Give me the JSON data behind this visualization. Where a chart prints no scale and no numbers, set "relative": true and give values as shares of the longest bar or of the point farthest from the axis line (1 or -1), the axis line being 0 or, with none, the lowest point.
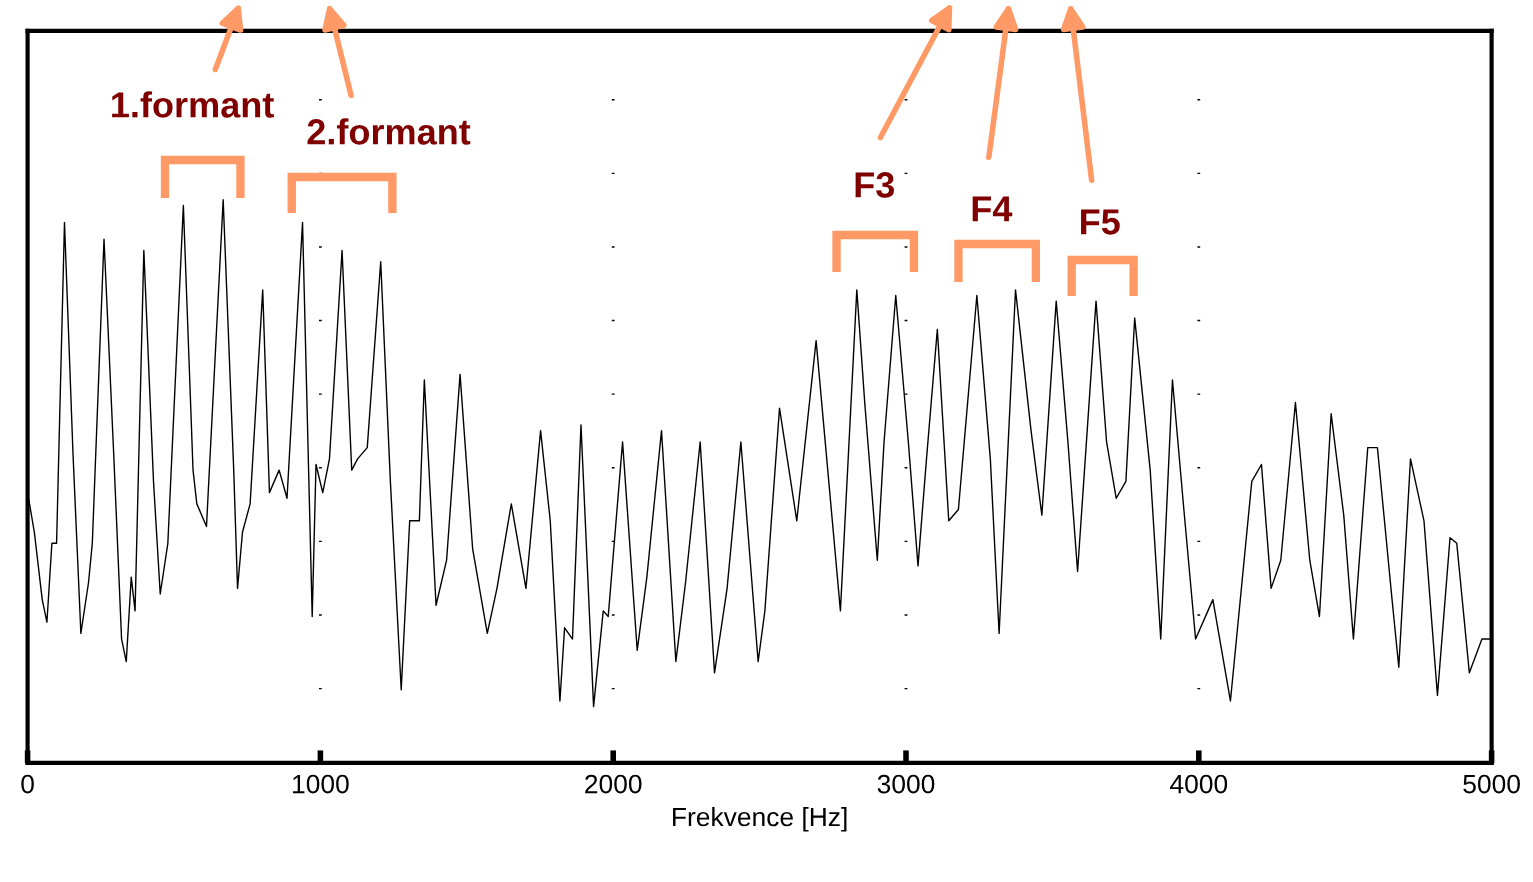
{
  "chart_data": {
    "type": "line",
    "relative": true,
    "xlabel": "Frekvence [Hz]",
    "xlim": [
      0,
      5000
    ],
    "xticks": [
      0,
      1000,
      2000,
      3000,
      4000,
      5000
    ],
    "tick_labels": "x",
    "grid": "x",
    "x": [
      0,
      23,
      50,
      66,
      83,
      99,
      126,
      155,
      182,
      208,
      221,
      261,
      294,
      321,
      337,
      354,
      367,
      397,
      430,
      453,
      479,
      532,
      565,
      578,
      611,
      668,
      704,
      717,
      734,
      760,
      803,
      826,
      859,
      886,
      939,
      972,
      985,
      1008,
      1031,
      1074,
      1107,
      1127,
      1160,
      1206,
      1239,
      1276,
      1305,
      1338,
      1355,
      1395,
      1431,
      1477,
      1520,
      1570,
      1603,
      1652,
      1702,
      1752,
      1785,
      1818,
      1834,
      1861,
      1890,
      1933,
      1966,
      1983,
      2032,
      2082,
      2115,
      2165,
      2214,
      2247,
      2297,
      2346,
      2389,
      2436,
      2495,
      2518,
      2568,
      2627,
      2693,
      2776,
      2832,
      2859,
      2902,
      2925,
      2965,
      3008,
      3041,
      3070,
      3107,
      3146,
      3179,
      3242,
      3288,
      3318,
      3374,
      3427,
      3464,
      3513,
      3553,
      3586,
      3649,
      3685,
      3718,
      3751,
      3781,
      3834,
      3870,
      3910,
      3949,
      3989,
      4048,
      4108,
      4181,
      4214,
      4247,
      4280,
      4330,
      4379,
      4412,
      4452,
      4495,
      4528,
      4577,
      4610,
      4660,
      4683,
      4723,
      4769,
      4815,
      4858,
      4881,
      4924,
      4967,
      4990,
      5000
    ],
    "series": [
      {
        "color": "#000000",
        "values": [
          0.48,
          0.41,
          0.29,
          0.25,
          0.39,
          0.39,
          0.96,
          0.55,
          0.23,
          0.32,
          0.39,
          0.93,
          0.55,
          0.22,
          0.18,
          0.33,
          0.27,
          0.91,
          0.5,
          0.3,
          0.39,
          0.99,
          0.52,
          0.46,
          0.42,
          1.0,
          0.52,
          0.31,
          0.41,
          0.46,
          0.84,
          0.48,
          0.52,
          0.47,
          0.96,
          0.26,
          0.53,
          0.48,
          0.54,
          0.91,
          0.52,
          0.54,
          0.56,
          0.89,
          0.5,
          0.13,
          0.43,
          0.43,
          0.68,
          0.28,
          0.36,
          0.69,
          0.38,
          0.23,
          0.31,
          0.46,
          0.31,
          0.59,
          0.43,
          0.11,
          0.24,
          0.22,
          0.6,
          0.1,
          0.27,
          0.26,
          0.57,
          0.2,
          0.33,
          0.59,
          0.18,
          0.32,
          0.57,
          0.16,
          0.31,
          0.57,
          0.18,
          0.27,
          0.63,
          0.43,
          0.75,
          0.27,
          0.84,
          0.64,
          0.36,
          0.57,
          0.83,
          0.57,
          0.35,
          0.54,
          0.77,
          0.43,
          0.45,
          0.83,
          0.54,
          0.23,
          0.84,
          0.59,
          0.44,
          0.82,
          0.57,
          0.34,
          0.82,
          0.57,
          0.47,
          0.5,
          0.79,
          0.52,
          0.22,
          0.68,
          0.45,
          0.22,
          0.29,
          0.11,
          0.5,
          0.53,
          0.31,
          0.36,
          0.64,
          0.36,
          0.26,
          0.62,
          0.44,
          0.22,
          0.56,
          0.56,
          0.29,
          0.17,
          0.54,
          0.43,
          0.12,
          0.4,
          0.39,
          0.16,
          0.22,
          0.22,
          0.22
        ]
      }
    ],
    "annotations": [
      "1.formant",
      "2.formant",
      "F3",
      "F4",
      "F5"
    ]
  }
}
